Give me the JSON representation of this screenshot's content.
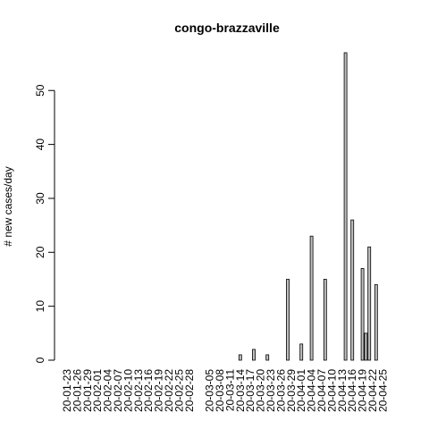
{
  "chart_data": {
    "type": "bar",
    "title": "congo-brazzaville",
    "y_label": "# new cases/day",
    "categories": [
      "20-01-23",
      null,
      null,
      "20-01-26",
      null,
      null,
      "20-01-29",
      null,
      null,
      "20-02-01",
      null,
      null,
      "20-02-04",
      null,
      null,
      "20-02-07",
      null,
      null,
      "20-02-10",
      null,
      null,
      "20-02-13",
      null,
      null,
      "20-02-16",
      null,
      null,
      "20-02-19",
      null,
      null,
      "20-02-22",
      null,
      null,
      "20-02-25",
      null,
      null,
      "20-02-28",
      null,
      null,
      null,
      null,
      null,
      "20-03-05",
      null,
      null,
      "20-03-08",
      null,
      null,
      "20-03-11",
      null,
      null,
      "20-03-14",
      null,
      null,
      "20-03-17",
      null,
      null,
      "20-03-20",
      null,
      null,
      "20-03-23",
      null,
      null,
      "20-03-26",
      null,
      null,
      "20-03-29",
      null,
      null,
      "20-04-01",
      null,
      null,
      "20-04-04",
      null,
      null,
      "20-04-07",
      null,
      null,
      "20-04-10",
      null,
      null,
      "20-04-13",
      null,
      null,
      "20-04-16",
      null,
      null,
      "20-04-19",
      null,
      null,
      "20-04-22",
      null,
      null,
      "20-04-25"
    ],
    "values": [
      0,
      0,
      0,
      0,
      0,
      0,
      0,
      0,
      0,
      0,
      0,
      0,
      0,
      0,
      0,
      0,
      0,
      0,
      0,
      0,
      0,
      0,
      0,
      0,
      0,
      0,
      0,
      0,
      0,
      0,
      0,
      0,
      0,
      0,
      0,
      0,
      0,
      0,
      0,
      0,
      0,
      0,
      0,
      0,
      0,
      0,
      0,
      0,
      0,
      0,
      0,
      1,
      0,
      0,
      0,
      2,
      0,
      0,
      0,
      1,
      0,
      0,
      0,
      0,
      0,
      15,
      0,
      0,
      0,
      3,
      0,
      0,
      23,
      0,
      0,
      0,
      15,
      0,
      0,
      0,
      0,
      0,
      57,
      0,
      26,
      0,
      0,
      17,
      5,
      21,
      0,
      14,
      0,
      0
    ],
    "color": "#bebebe",
    "ylim": [
      0,
      57
    ],
    "yticks": [
      0,
      10,
      20,
      30,
      40,
      50
    ],
    "grid": false
  }
}
